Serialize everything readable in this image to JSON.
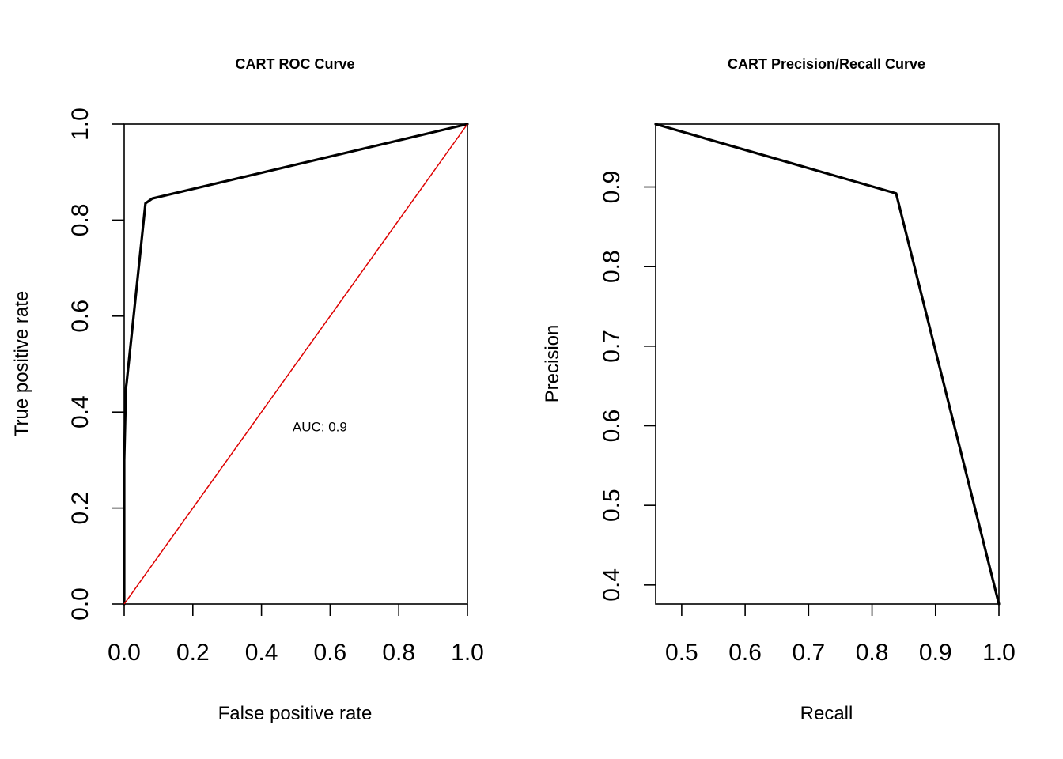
{
  "chart_data": [
    {
      "type": "line",
      "title": "CART ROC Curve",
      "xlabel": "False positive rate",
      "ylabel": "True positive rate",
      "xlim": [
        0,
        1
      ],
      "ylim": [
        0,
        1
      ],
      "x_ticks": [
        "0.0",
        "0.2",
        "0.4",
        "0.6",
        "0.8",
        "1.0"
      ],
      "y_ticks": [
        "0.0",
        "0.2",
        "0.4",
        "0.6",
        "0.8",
        "1.0"
      ],
      "series": [
        {
          "x": [
            0.0,
            0.0,
            0.005,
            0.007,
            0.062,
            0.082,
            1.0
          ],
          "y": [
            0.0,
            0.3,
            0.45,
            0.46,
            0.835,
            0.845,
            1.0
          ],
          "color": "#000000"
        },
        {
          "x": [
            0,
            1
          ],
          "y": [
            0,
            1
          ],
          "color": "#dd0000"
        }
      ],
      "annotations": [
        {
          "text": "AUC: 0.9",
          "x": 0.57,
          "y": 0.36
        }
      ],
      "grid": false,
      "legend": "none"
    },
    {
      "type": "line",
      "title": "CART Precision/Recall Curve",
      "xlabel": "Recall",
      "ylabel": "Precision",
      "xlim": [
        0.459,
        1.0
      ],
      "ylim": [
        0.376,
        0.979
      ],
      "x_ticks": [
        "0.5",
        "0.6",
        "0.7",
        "0.8",
        "0.9",
        "1.0"
      ],
      "y_ticks": [
        "0.4",
        "0.5",
        "0.6",
        "0.7",
        "0.8",
        "0.9"
      ],
      "series": [
        {
          "x": [
            0.459,
            0.838,
            1.0
          ],
          "y": [
            0.979,
            0.892,
            0.376
          ],
          "color": "#000000"
        }
      ],
      "grid": false,
      "legend": "none"
    }
  ]
}
